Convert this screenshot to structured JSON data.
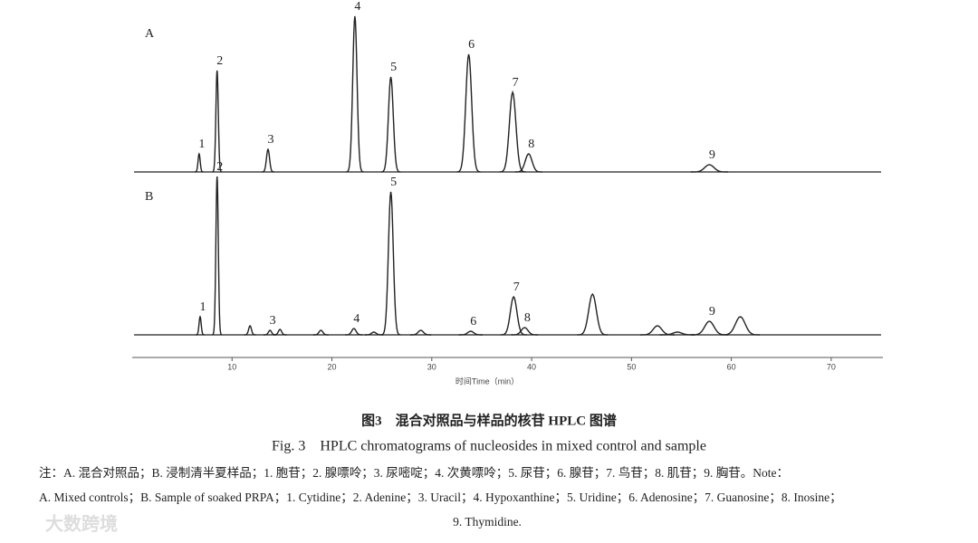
{
  "chart_data": {
    "type": "line",
    "xlabel": "时间Time（min）",
    "xlim": [
      0,
      75
    ],
    "xticks": [
      10,
      20,
      30,
      40,
      50,
      60,
      70
    ],
    "ylim": [
      0,
      180
    ],
    "series": [
      {
        "name": "A",
        "color": "#222222",
        "x": [
          6.7,
          8.5,
          13.6,
          22.3,
          25.9,
          33.7,
          38.1,
          39.7,
          57.8
        ],
        "values": [
          20,
          112,
          25,
          172,
          105,
          130,
          88,
          20,
          8
        ],
        "labels": [
          "1",
          "2",
          "3",
          "4",
          "5",
          "6",
          "7",
          "8",
          "9"
        ]
      },
      {
        "name": "B",
        "color": "#222222",
        "x": [
          6.8,
          8.5,
          11.8,
          13.8,
          14.8,
          18.9,
          22.2,
          24.2,
          25.9,
          28.9,
          33.9,
          38.2,
          39.3,
          46.1,
          52.6,
          54.6,
          57.8,
          60.9
        ],
        "values": [
          20,
          175,
          10,
          5,
          6,
          5,
          7,
          3,
          158,
          5,
          4,
          42,
          8,
          45,
          10,
          3,
          15,
          20
        ],
        "labels": [
          "1",
          "2",
          null,
          "3",
          null,
          null,
          "4",
          null,
          "5",
          null,
          "6",
          "7",
          "8",
          null,
          null,
          null,
          "9",
          null
        ]
      }
    ]
  },
  "caption": {
    "title_cn": "图3　混合对照品与样品的核苷 HPLC 图谱",
    "title_en": "Fig. 3　HPLC chromatograms of nucleosides in mixed control and sample",
    "note_lines": [
      "注：A. 混合对照品；B. 浸制清半夏样品；1. 胞苷；2. 腺嘌呤；3. 尿嘧啶；4. 次黄嘌呤；5. 尿苷；6. 腺苷；7. 鸟苷；8. 肌苷；9. 胸苷。Note：",
      "A. Mixed controls；B. Sample of soaked PRPA；1. Cytidine；2. Adenine；3. Uracil；4. Hypoxanthine；5. Uridine；6. Adenosine；7. Guanosine；8. Inosine；",
      "9. Thymidine."
    ]
  },
  "watermark": "大数跨境"
}
